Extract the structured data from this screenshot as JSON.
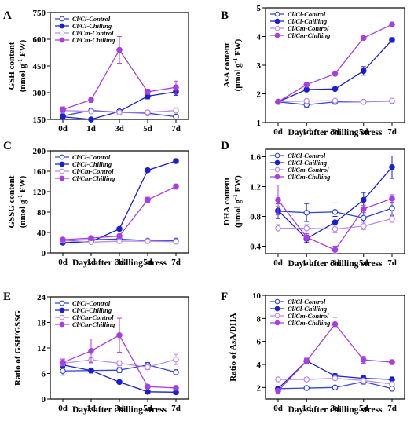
{
  "colors": {
    "cl_control": "#3344d8",
    "cl_chilling": "#1a1fd0",
    "cm_control": "#b98af0",
    "cm_chilling": "#a93ee0"
  },
  "chart_data": [
    {
      "id": "A",
      "type": "line",
      "letter": "A",
      "xlabel": "",
      "ylabel_lines": [
        "GSH content",
        "(nmol g",
        "-1",
        " FW)"
      ],
      "categories": [
        "0d",
        "1d",
        "3d",
        "5d",
        "7d"
      ],
      "ylim": [
        150,
        750
      ],
      "yticks": [
        150,
        300,
        450,
        600,
        750
      ],
      "legend": "top-left",
      "series": [
        {
          "name": "Cl/Cl-Control",
          "key": "cl_control",
          "filled": false,
          "values": [
            170,
            200,
            190,
            185,
            165
          ],
          "err": [
            10,
            10,
            10,
            10,
            10
          ]
        },
        {
          "name": "Cl/Cl-Chilling",
          "key": "cl_chilling",
          "filled": true,
          "values": [
            165,
            150,
            195,
            280,
            305
          ],
          "err": [
            10,
            10,
            10,
            15,
            20
          ]
        },
        {
          "name": "Cl/Cm-Control",
          "key": "cm_control",
          "filled": false,
          "values": [
            200,
            195,
            190,
            190,
            200
          ],
          "err": [
            10,
            10,
            10,
            10,
            15
          ]
        },
        {
          "name": "Cl/Cm-Chilling",
          "key": "cm_chilling",
          "filled": true,
          "values": [
            205,
            260,
            540,
            305,
            330
          ],
          "err": [
            15,
            15,
            75,
            15,
            35
          ]
        }
      ]
    },
    {
      "id": "B",
      "type": "line",
      "letter": "B",
      "xlabel": "Days after chilling stress",
      "ylabel_lines": [
        "AsA content",
        "(μmol g",
        "-1",
        " FW)"
      ],
      "categories": [
        "0d",
        "1d",
        "3d",
        "5d",
        "7d"
      ],
      "ylim": [
        1,
        5
      ],
      "yticks": [
        1,
        2,
        3,
        4,
        5
      ],
      "legend": "top-left",
      "series": [
        {
          "name": "Cl/Cl-Control",
          "key": "cl_control",
          "filled": false,
          "values": [
            1.72,
            1.62,
            1.72,
            1.72,
            1.75
          ],
          "err": [
            0.05,
            0.08,
            0.08,
            0.05,
            0.05
          ]
        },
        {
          "name": "Cl/Cl-Chilling",
          "key": "cl_chilling",
          "filled": true,
          "values": [
            1.72,
            2.15,
            2.17,
            2.8,
            3.88
          ],
          "err": [
            0.05,
            0.05,
            0.05,
            0.15,
            0.08
          ]
        },
        {
          "name": "Cl/Cm-Control",
          "key": "cm_control",
          "filled": false,
          "values": [
            1.73,
            1.75,
            1.76,
            1.72,
            1.76
          ],
          "err": [
            0.05,
            0.05,
            0.05,
            0.05,
            0.05
          ]
        },
        {
          "name": "Cl/Cm-Chilling",
          "key": "cm_chilling",
          "filled": true,
          "values": [
            1.72,
            2.32,
            2.7,
            3.95,
            4.42
          ],
          "err": [
            0.05,
            0.05,
            0.05,
            0.05,
            0.05
          ]
        }
      ]
    },
    {
      "id": "C",
      "type": "line",
      "letter": "C",
      "xlabel": "Days after chilling stress",
      "ylabel_lines": [
        "GSSG content",
        "(nmol g",
        "-1",
        " FW)"
      ],
      "categories": [
        "0d",
        "1d",
        "3d",
        "5d",
        "7d"
      ],
      "ylim": [
        0,
        200
      ],
      "yticks": [
        0,
        40,
        80,
        120,
        160,
        200
      ],
      "legend": "top-left",
      "series": [
        {
          "name": "Cl/Cl-Control",
          "key": "cl_control",
          "filled": false,
          "values": [
            24,
            26,
            27,
            24,
            24
          ],
          "err": [
            2,
            2,
            2,
            2,
            2
          ]
        },
        {
          "name": "Cl/Cl-Chilling",
          "key": "cl_chilling",
          "filled": true,
          "values": [
            20,
            22,
            47,
            162,
            180
          ],
          "err": [
            2,
            2,
            3,
            3,
            3
          ]
        },
        {
          "name": "Cl/Cm-Control",
          "key": "cm_control",
          "filled": false,
          "values": [
            24,
            21,
            23,
            23,
            22
          ],
          "err": [
            2,
            2,
            2,
            2,
            2
          ]
        },
        {
          "name": "Cl/Cm-Chilling",
          "key": "cm_chilling",
          "filled": true,
          "values": [
            26,
            29,
            33,
            104,
            130
          ],
          "err": [
            2,
            2,
            3,
            5,
            5
          ]
        }
      ]
    },
    {
      "id": "D",
      "type": "line",
      "letter": "D",
      "xlabel": "Days after chilling stress",
      "ylabel_lines": [
        "DHA content",
        "(μmol g",
        "-1",
        " FW)"
      ],
      "categories": [
        "0d",
        "1d",
        "3d",
        "5d",
        "7d"
      ],
      "ylim": [
        0.3,
        1.7
      ],
      "yticks": [
        0.4,
        0.8,
        1.2,
        1.6
      ],
      "legend": "top-left",
      "series": [
        {
          "name": "Cl/Cl-Control",
          "key": "cl_control",
          "filled": false,
          "values": [
            0.87,
            0.85,
            0.86,
            0.78,
            0.91
          ],
          "err": [
            0.1,
            0.12,
            0.12,
            0.1,
            0.1
          ]
        },
        {
          "name": "Cl/Cl-Chilling",
          "key": "cl_chilling",
          "filled": true,
          "values": [
            0.88,
            0.5,
            0.72,
            1.02,
            1.46
          ],
          "err": [
            0.05,
            0.05,
            0.08,
            0.1,
            0.15
          ]
        },
        {
          "name": "Cl/Cm-Control",
          "key": "cm_control",
          "filled": false,
          "values": [
            0.64,
            0.64,
            0.63,
            0.67,
            0.77
          ],
          "err": [
            0.05,
            0.05,
            0.05,
            0.05,
            0.05
          ]
        },
        {
          "name": "Cl/Cm-Chilling",
          "key": "cm_chilling",
          "filled": true,
          "values": [
            1.02,
            0.52,
            0.35,
            0.9,
            1.04
          ],
          "err": [
            0.2,
            0.05,
            0.05,
            0.05,
            0.05
          ]
        }
      ]
    },
    {
      "id": "E",
      "type": "line",
      "letter": "E",
      "xlabel": "Days after chilling stress",
      "ylabel_lines": [
        "Ratio of GSH/GSSG"
      ],
      "categories": [
        "0d",
        "1d",
        "3d",
        "5d",
        "7d"
      ],
      "ylim": [
        0,
        24
      ],
      "yticks": [
        0,
        6,
        12,
        18,
        24
      ],
      "legend": "top-left",
      "series": [
        {
          "name": "Cl/Cl-Control",
          "key": "cl_control",
          "filled": false,
          "values": [
            6.6,
            6.7,
            6.8,
            8.0,
            6.3
          ],
          "err": [
            1.0,
            0.6,
            0.6,
            0.6,
            0.6
          ]
        },
        {
          "name": "Cl/Cl-Chilling",
          "key": "cl_chilling",
          "filled": true,
          "values": [
            8.0,
            6.7,
            4.0,
            1.7,
            1.6
          ],
          "err": [
            0.5,
            0.4,
            0.3,
            0.2,
            0.2
          ]
        },
        {
          "name": "Cl/Cm-Control",
          "key": "cm_control",
          "filled": false,
          "values": [
            8.4,
            9.2,
            8.4,
            7.5,
            9.3
          ],
          "err": [
            0.6,
            0.6,
            0.6,
            0.6,
            1.2
          ]
        },
        {
          "name": "Cl/Cm-Chilling",
          "key": "cm_chilling",
          "filled": true,
          "values": [
            8.6,
            11.3,
            15.0,
            2.9,
            2.6
          ],
          "err": [
            0.8,
            2.8,
            4.0,
            0.4,
            0.3
          ]
        }
      ]
    },
    {
      "id": "F",
      "type": "line",
      "letter": "F",
      "xlabel": "Days after chilling stress",
      "ylabel_lines": [
        "Ratio of AsA/DHA"
      ],
      "categories": [
        "0d",
        "1d",
        "3d",
        "5d",
        "7d"
      ],
      "ylim": [
        1,
        10
      ],
      "yticks": [
        2,
        4,
        6,
        8,
        10
      ],
      "legend": "top-left",
      "series": [
        {
          "name": "Cl/Cl-Control",
          "key": "cl_control",
          "filled": false,
          "values": [
            1.9,
            1.95,
            2.0,
            2.5,
            1.9
          ],
          "err": [
            0.15,
            0.15,
            0.15,
            0.2,
            0.15
          ]
        },
        {
          "name": "Cl/Cl-Chilling",
          "key": "cl_chilling",
          "filled": true,
          "values": [
            1.9,
            4.3,
            3.0,
            2.8,
            2.7
          ],
          "err": [
            0.15,
            0.2,
            0.2,
            0.2,
            0.2
          ]
        },
        {
          "name": "Cl/Cm-Control",
          "key": "cm_control",
          "filled": false,
          "values": [
            2.7,
            2.7,
            2.8,
            2.6,
            2.3
          ],
          "err": [
            0.15,
            0.15,
            0.15,
            0.15,
            0.15
          ]
        },
        {
          "name": "Cl/Cm-Chilling",
          "key": "cm_chilling",
          "filled": true,
          "values": [
            1.7,
            4.3,
            7.5,
            4.4,
            4.2
          ],
          "err": [
            0.2,
            0.25,
            0.6,
            0.3,
            0.2
          ]
        }
      ]
    }
  ]
}
